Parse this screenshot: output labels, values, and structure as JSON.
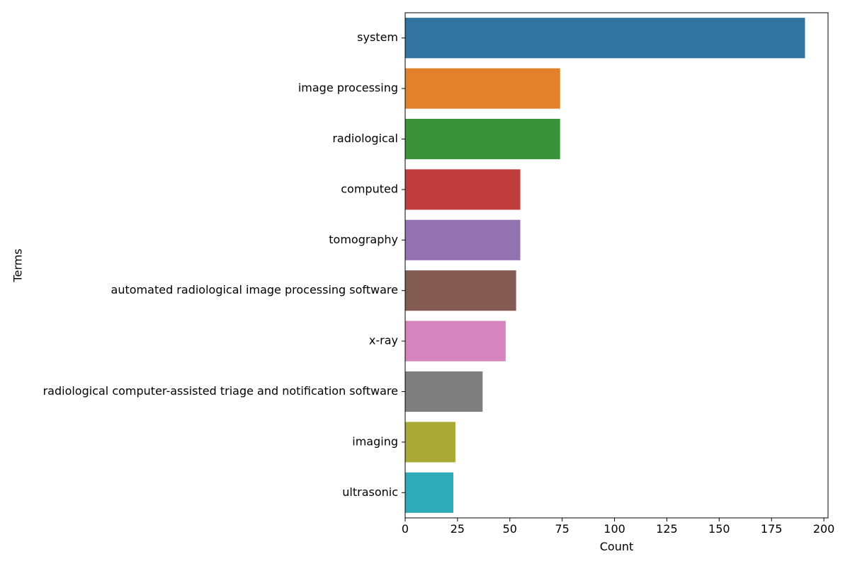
{
  "chart_data": {
    "type": "bar",
    "orientation": "horizontal",
    "title": "",
    "xlabel": "Count",
    "ylabel": "Terms",
    "xlim": [
      0,
      202
    ],
    "xticks": [
      0,
      25,
      50,
      75,
      100,
      125,
      150,
      175,
      200
    ],
    "grid": false,
    "legend": "none",
    "categories": [
      "system",
      "image processing",
      "radiological",
      "computed",
      "tomography",
      "automated radiological image processing software",
      "x-ray",
      "radiological computer-assisted triage and notification software",
      "imaging",
      "ultrasonic"
    ],
    "values": [
      191,
      74,
      74,
      55,
      55,
      53,
      48,
      37,
      24,
      23
    ],
    "colors": [
      "#3274a1",
      "#e1812c",
      "#3a923a",
      "#c03d3e",
      "#9372b2",
      "#845b53",
      "#d684bd",
      "#7f7f7f",
      "#a9aa35",
      "#2eabb8"
    ]
  }
}
